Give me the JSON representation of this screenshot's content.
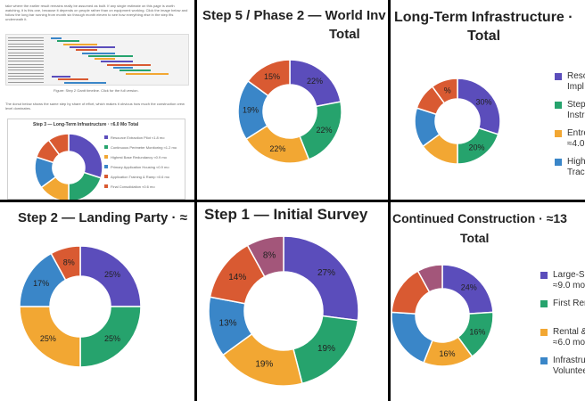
{
  "palette": {
    "purple": "#5b4dbb",
    "green": "#26a36d",
    "orange": "#f2a733",
    "blue": "#3a86c8",
    "red": "#d95a32",
    "mauve": "#a3567a"
  },
  "thumbnail": {
    "intro_text": "take where the earlier result remains really be assumed as built. If any single estimate on this page is worth watching, it is this one, because it depends on people rather than on equipment working. Click the image below and follow the long bar running from month six through month eleven to see how everything else in the step fits underneath it.",
    "gantt_caption": "Figure: Step 2 Gantt timeline. Click for the full version.",
    "body_text": "The donut below shows the same step by share of effort, which makes it obvious how much the construction crew level dominates.",
    "mini_chart_title": "Step 3 — Long-Term Infrastructure · ≈6.0 Mo Total",
    "mini_legend": [
      "Resource Extraction Pilot ≈1.8 mo",
      "Continuous Perimeter Monitoring ≈1.2 mo",
      "Highest Base Redundancy ≈0.9 mo",
      "Primary Application Housing ≈0.9 mo",
      "Application Training & Ramp ≈0.6 mo",
      "Final Consolidation ≈0.6 mo"
    ]
  },
  "chart_data": [
    {
      "id": "step5",
      "type": "pie",
      "title": "Step 5 / Phase 2 — World Inv",
      "subtitle": "Total",
      "values": [
        22,
        22,
        22,
        19,
        15
      ],
      "labels": [
        "22%",
        "22%",
        "22%",
        "19%",
        "15%"
      ],
      "colors": [
        "purple",
        "green",
        "orange",
        "blue",
        "red"
      ]
    },
    {
      "id": "longterm",
      "type": "pie",
      "title": "Long-Term Infrastructure ·",
      "subtitle": "Total",
      "values": [
        30,
        20,
        15,
        15,
        10,
        10
      ],
      "labels": [
        "30%",
        "20%",
        "",
        "",
        "",
        "%"
      ],
      "colors": [
        "purple",
        "green",
        "orange",
        "blue",
        "red",
        "red"
      ],
      "legend": [
        {
          "text": "Reso",
          "text2": "Impl",
          "color": "purple"
        },
        {
          "text": "Step",
          "text2": "Instr",
          "color": "green"
        },
        {
          "text": "Entre",
          "text2": "≈4.0",
          "color": "orange"
        },
        {
          "text": "High",
          "text2": "Track",
          "color": "blue"
        }
      ]
    },
    {
      "id": "step2",
      "type": "pie",
      "title": "Step 2 — Landing Party · ≈",
      "values": [
        25,
        25,
        25,
        17,
        8
      ],
      "labels": [
        "25%",
        "25%",
        "25%",
        "17%",
        "8%"
      ],
      "colors": [
        "purple",
        "green",
        "orange",
        "blue",
        "red"
      ]
    },
    {
      "id": "step1",
      "type": "pie",
      "title": "Step 1 — Initial Survey",
      "values": [
        27,
        19,
        19,
        13,
        14,
        8
      ],
      "labels": [
        "27%",
        "19%",
        "19%",
        "13%",
        "14%",
        "8%"
      ],
      "colors": [
        "purple",
        "green",
        "orange",
        "blue",
        "red",
        "mauve"
      ]
    },
    {
      "id": "continued",
      "type": "pie",
      "title": "Continued Construction · ≈13",
      "subtitle": "Total",
      "values": [
        24,
        16,
        16,
        20,
        16,
        8
      ],
      "labels": [
        "24%",
        "16%",
        "16%",
        "",
        "",
        ""
      ],
      "colors": [
        "purple",
        "green",
        "orange",
        "blue",
        "red",
        "mauve"
      ],
      "legend": [
        {
          "text": "Large-Sca",
          "text2": "≈9.0 mo",
          "color": "purple"
        },
        {
          "text": "First Rent",
          "text2": "",
          "color": "green"
        },
        {
          "text": "Rental &",
          "text2": "≈6.0 mo",
          "color": "orange"
        },
        {
          "text": "Infrastruc",
          "text2": "Voluntee",
          "color": "blue"
        }
      ]
    }
  ]
}
